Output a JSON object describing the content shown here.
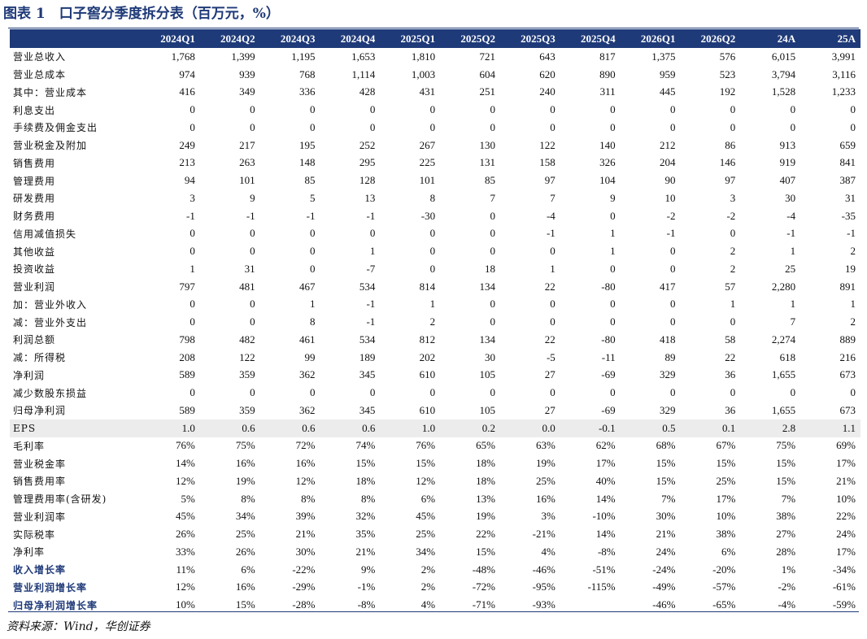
{
  "title": "图表 1　口子窖分季度拆分表（百万元，%）",
  "headers": [
    "",
    "2024Q1",
    "2024Q2",
    "2024Q3",
    "2024Q4",
    "2025Q1",
    "2025Q2",
    "2025Q3",
    "2025Q4",
    "2026Q1",
    "2026Q2",
    "24A",
    "25A"
  ],
  "rows": [
    {
      "label": "营业总收入",
      "values": [
        "1,768",
        "1,399",
        "1,195",
        "1,653",
        "1,810",
        "721",
        "643",
        "817",
        "1,375",
        "576",
        "6,015",
        "3,991"
      ]
    },
    {
      "label": "营业总成本",
      "values": [
        "974",
        "939",
        "768",
        "1,114",
        "1,003",
        "604",
        "620",
        "890",
        "959",
        "523",
        "3,794",
        "3,116"
      ]
    },
    {
      "label": "其中：营业成本",
      "values": [
        "416",
        "349",
        "336",
        "428",
        "431",
        "251",
        "240",
        "311",
        "445",
        "192",
        "1,528",
        "1,233"
      ]
    },
    {
      "label": "利息支出",
      "values": [
        "0",
        "0",
        "0",
        "0",
        "0",
        "0",
        "0",
        "0",
        "0",
        "0",
        "0",
        "0"
      ]
    },
    {
      "label": "手续费及佣金支出",
      "values": [
        "0",
        "0",
        "0",
        "0",
        "0",
        "0",
        "0",
        "0",
        "0",
        "0",
        "0",
        "0"
      ]
    },
    {
      "label": "营业税金及附加",
      "values": [
        "249",
        "217",
        "195",
        "252",
        "267",
        "130",
        "122",
        "140",
        "212",
        "86",
        "913",
        "659"
      ]
    },
    {
      "label": "销售费用",
      "values": [
        "213",
        "263",
        "148",
        "295",
        "225",
        "131",
        "158",
        "326",
        "204",
        "146",
        "919",
        "841"
      ]
    },
    {
      "label": "管理费用",
      "values": [
        "94",
        "101",
        "85",
        "128",
        "101",
        "85",
        "97",
        "104",
        "90",
        "97",
        "407",
        "387"
      ]
    },
    {
      "label": "研发费用",
      "values": [
        "3",
        "9",
        "5",
        "13",
        "8",
        "7",
        "7",
        "9",
        "10",
        "3",
        "30",
        "31"
      ]
    },
    {
      "label": "财务费用",
      "values": [
        "-1",
        "-1",
        "-1",
        "-1",
        "-30",
        "0",
        "-4",
        "0",
        "-2",
        "-2",
        "-4",
        "-35"
      ]
    },
    {
      "label": "信用减值损失",
      "values": [
        "0",
        "0",
        "0",
        "0",
        "0",
        "0",
        "-1",
        "1",
        "-1",
        "0",
        "-1",
        "-1"
      ]
    },
    {
      "label": "其他收益",
      "values": [
        "0",
        "0",
        "0",
        "1",
        "0",
        "0",
        "0",
        "1",
        "0",
        "2",
        "1",
        "2"
      ]
    },
    {
      "label": "投资收益",
      "values": [
        "1",
        "31",
        "0",
        "-7",
        "0",
        "18",
        "1",
        "0",
        "0",
        "2",
        "25",
        "19"
      ]
    },
    {
      "label": "营业利润",
      "values": [
        "797",
        "481",
        "467",
        "534",
        "814",
        "134",
        "22",
        "-80",
        "417",
        "57",
        "2,280",
        "891"
      ]
    },
    {
      "label": "加：营业外收入",
      "values": [
        "0",
        "0",
        "1",
        "-1",
        "1",
        "0",
        "0",
        "0",
        "0",
        "1",
        "1",
        "1"
      ]
    },
    {
      "label": "减：营业外支出",
      "values": [
        "0",
        "0",
        "8",
        "-1",
        "2",
        "0",
        "0",
        "0",
        "0",
        "0",
        "7",
        "2"
      ]
    },
    {
      "label": "利润总额",
      "values": [
        "798",
        "482",
        "461",
        "534",
        "812",
        "134",
        "22",
        "-80",
        "418",
        "58",
        "2,274",
        "889"
      ]
    },
    {
      "label": "减：所得税",
      "values": [
        "208",
        "122",
        "99",
        "189",
        "202",
        "30",
        "-5",
        "-11",
        "89",
        "22",
        "618",
        "216"
      ]
    },
    {
      "label": "净利润",
      "values": [
        "589",
        "359",
        "362",
        "345",
        "610",
        "105",
        "27",
        "-69",
        "329",
        "36",
        "1,655",
        "673"
      ]
    },
    {
      "label": "减少数股东损益",
      "values": [
        "0",
        "0",
        "0",
        "0",
        "0",
        "0",
        "0",
        "0",
        "0",
        "0",
        "0",
        "0"
      ]
    },
    {
      "label": "归母净利润",
      "values": [
        "589",
        "359",
        "362",
        "345",
        "610",
        "105",
        "27",
        "-69",
        "329",
        "36",
        "1,655",
        "673"
      ]
    },
    {
      "label": "EPS",
      "style": "shaded",
      "values": [
        "1.0",
        "0.6",
        "0.6",
        "0.6",
        "1.0",
        "0.2",
        "0.0",
        "-0.1",
        "0.5",
        "0.1",
        "2.8",
        "1.1"
      ]
    },
    {
      "label": "毛利率",
      "values": [
        "76%",
        "75%",
        "72%",
        "74%",
        "76%",
        "65%",
        "63%",
        "62%",
        "68%",
        "67%",
        "75%",
        "69%"
      ]
    },
    {
      "label": "营业税金率",
      "values": [
        "14%",
        "16%",
        "16%",
        "15%",
        "15%",
        "18%",
        "19%",
        "17%",
        "15%",
        "15%",
        "15%",
        "17%"
      ]
    },
    {
      "label": "销售费用率",
      "values": [
        "12%",
        "19%",
        "12%",
        "18%",
        "12%",
        "18%",
        "25%",
        "40%",
        "15%",
        "25%",
        "15%",
        "21%"
      ]
    },
    {
      "label": "管理费用率(含研发)",
      "values": [
        "5%",
        "8%",
        "8%",
        "8%",
        "6%",
        "13%",
        "16%",
        "14%",
        "7%",
        "17%",
        "7%",
        "10%"
      ]
    },
    {
      "label": "营业利润率",
      "values": [
        "45%",
        "34%",
        "39%",
        "32%",
        "45%",
        "19%",
        "3%",
        "-10%",
        "30%",
        "10%",
        "38%",
        "22%"
      ]
    },
    {
      "label": "实际税率",
      "values": [
        "26%",
        "25%",
        "21%",
        "35%",
        "25%",
        "22%",
        "-21%",
        "14%",
        "21%",
        "38%",
        "27%",
        "24%"
      ]
    },
    {
      "label": "净利率",
      "values": [
        "33%",
        "26%",
        "30%",
        "21%",
        "34%",
        "15%",
        "4%",
        "-8%",
        "24%",
        "6%",
        "28%",
        "17%"
      ]
    },
    {
      "label": "收入增长率",
      "style": "bold",
      "values": [
        "11%",
        "6%",
        "-22%",
        "9%",
        "2%",
        "-48%",
        "-46%",
        "-51%",
        "-24%",
        "-20%",
        "1%",
        "-34%"
      ]
    },
    {
      "label": "营业利润增长率",
      "style": "bold",
      "values": [
        "12%",
        "16%",
        "-29%",
        "-1%",
        "2%",
        "-72%",
        "-95%",
        "-115%",
        "-49%",
        "-57%",
        "-2%",
        "-61%"
      ]
    },
    {
      "label": "归母净利润增长率",
      "style": "bold",
      "values": [
        "10%",
        "15%",
        "-28%",
        "-8%",
        "4%",
        "-71%",
        "-93%",
        "",
        "-46%",
        "-65%",
        "-4%",
        "-59%"
      ]
    }
  ],
  "source": "资料来源：Wind，华创证券"
}
